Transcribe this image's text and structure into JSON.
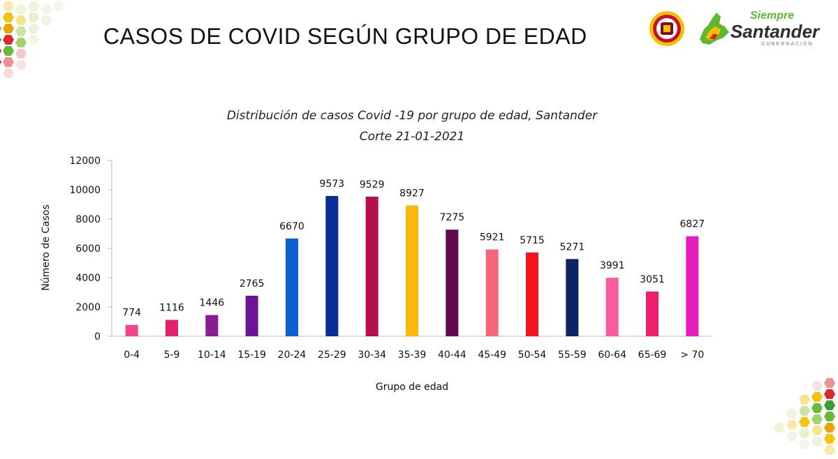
{
  "page": {
    "title": "CASOS DE COVID SEGÚN GRUPO DE EDAD"
  },
  "branding": {
    "siempre": "Siempre",
    "santander": "Santander",
    "gobernacion": "GOBERNACIÓN",
    "colors": {
      "green": "#5fb82e",
      "yellow": "#f5c000",
      "red": "#d71f26"
    }
  },
  "chart_data": {
    "type": "bar",
    "title": "Distribución de casos Covid -19 por grupo de edad, Santander",
    "subtitle": "Corte 21-01-2021",
    "xlabel": "Grupo de edad",
    "ylabel": "Número de Casos",
    "ylim": [
      0,
      12000
    ],
    "yticks": [
      0,
      2000,
      4000,
      6000,
      8000,
      10000,
      12000
    ],
    "grid": false,
    "legend": "none",
    "categories": [
      "0-4",
      "5-9",
      "10-14",
      "15-19",
      "20-24",
      "25-29",
      "30-34",
      "35-39",
      "40-44",
      "45-49",
      "50-54",
      "55-59",
      "60-64",
      "65-69",
      "> 70"
    ],
    "values": [
      774,
      1116,
      1446,
      2765,
      6670,
      9573,
      9529,
      8927,
      7275,
      5921,
      5715,
      5271,
      3991,
      3051,
      6827
    ],
    "colors": [
      "#f0468c",
      "#e61e6e",
      "#8b1a96",
      "#6b1594",
      "#0a5fd2",
      "#0a2d96",
      "#b4104e",
      "#fab90a",
      "#5f0a4a",
      "#fa6478",
      "#f5141e",
      "#0f2364",
      "#fa5aa0",
      "#f01e6e",
      "#e61ebe"
    ]
  }
}
